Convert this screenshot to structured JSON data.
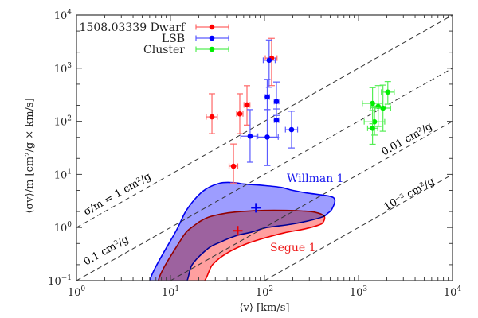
{
  "chart_data": {
    "type": "scatter",
    "title": "",
    "xlabel": "⟨v⟩ [km/s]",
    "ylabel": "⟨σv⟩/m [cm²/g × km/s]",
    "xscale": "log",
    "yscale": "log",
    "xlim": [
      1,
      10000
    ],
    "ylim": [
      0.1,
      10000
    ],
    "grid": false,
    "legend_position": "top-left",
    "x_ticks": [
      {
        "value": 1,
        "base": "10",
        "exp": "0"
      },
      {
        "value": 10,
        "base": "10",
        "exp": "1"
      },
      {
        "value": 100,
        "base": "10",
        "exp": "2"
      },
      {
        "value": 1000,
        "base": "10",
        "exp": "3"
      },
      {
        "value": 10000,
        "base": "10",
        "exp": "4"
      }
    ],
    "y_ticks": [
      {
        "value": 0.1,
        "base": "10",
        "exp": "−1"
      },
      {
        "value": 1,
        "base": "10",
        "exp": "0"
      },
      {
        "value": 10,
        "base": "10",
        "exp": "1"
      },
      {
        "value": 100,
        "base": "10",
        "exp": "2"
      },
      {
        "value": 1000,
        "base": "10",
        "exp": "3"
      },
      {
        "value": 10000,
        "base": "10",
        "exp": "4"
      }
    ],
    "series": [
      {
        "name": "1508.03339 Dwarf",
        "label_prefix": "1508.03339",
        "color": "#ff0000",
        "bar_color": "#ff6666",
        "points": [
          {
            "x": 27.6,
            "y": 121,
            "xerr": [
              24,
              31.5
            ],
            "yerr": [
              58.6,
              330
            ]
          },
          {
            "x": 54.6,
            "y": 138,
            "xerr": [
              50.5,
              59
            ],
            "yerr": [
              58.6,
              330
            ]
          },
          {
            "x": 65.1,
            "y": 204,
            "xerr": [
              60.5,
              70
            ],
            "yerr": [
              85,
              468
            ]
          },
          {
            "x": 46.8,
            "y": 14.3,
            "xerr": [
              42,
              52
            ],
            "yerr": [
              6.9,
              37.4
            ]
          },
          {
            "x": 119,
            "y": 1550,
            "xerr": [
              102,
              136
            ],
            "yerr": [
              470,
              3650
            ]
          }
        ]
      },
      {
        "name": "LSB",
        "color": "#0000ff",
        "bar_color": "#5a5aff",
        "points": [
          {
            "x": 112,
            "y": 1410,
            "xerr": [
              97,
              130
            ],
            "yerr": [
              437,
              3400
            ]
          },
          {
            "x": 107,
            "y": 288,
            "xerr": [
              102,
              113
            ],
            "yerr": [
              166,
              617
            ]
          },
          {
            "x": 134,
            "y": 236,
            "xerr": [
              127,
              142
            ],
            "yerr": [
              129,
              550
            ]
          },
          {
            "x": 134,
            "y": 105,
            "xerr": [
              127,
              142
            ],
            "yerr": [
              49,
              171
            ]
          },
          {
            "x": 70.3,
            "y": 52.6,
            "xerr": [
              56,
              85
            ],
            "yerr": [
              17,
              166
            ]
          },
          {
            "x": 107,
            "y": 50.6,
            "xerr": [
              83,
              140
            ],
            "yerr": [
              14.7,
              166
            ]
          },
          {
            "x": 194,
            "y": 69.7,
            "xerr": [
              167,
              225
            ],
            "yerr": [
              31.5,
              155
            ]
          }
        ]
      },
      {
        "name": "Cluster",
        "color": "#00ee00",
        "bar_color": "#55ee55",
        "points": [
          {
            "x": 2050,
            "y": 355,
            "xerr": [
              1750,
              2400
            ],
            "yerr": [
              210,
              560
            ]
          },
          {
            "x": 1410,
            "y": 218,
            "xerr": [
              1100,
              1800
            ],
            "yerr": [
              90,
              430
            ]
          },
          {
            "x": 1620,
            "y": 190,
            "xerr": [
              1350,
              1950
            ],
            "yerr": [
              80,
              470
            ]
          },
          {
            "x": 1820,
            "y": 177,
            "xerr": [
              1500,
              2200
            ],
            "yerr": [
              65,
              480
            ]
          },
          {
            "x": 1480,
            "y": 98,
            "xerr": [
              1150,
              1900
            ],
            "yerr": [
              55,
              180
            ]
          },
          {
            "x": 1410,
            "y": 74,
            "xerr": [
              1250,
              1600
            ],
            "yerr": [
              37,
              160
            ]
          }
        ]
      }
    ],
    "reference_lines": [
      {
        "name": "sigma-m-1",
        "k": 1,
        "label": "σ/m = 1 cm²/g"
      },
      {
        "name": "sigma-m-0.1",
        "k": 0.1,
        "label": "0.1 cm²/g"
      },
      {
        "name": "sigma-m-0.01",
        "k": 0.01,
        "label": "0.01 cm²/g"
      },
      {
        "name": "sigma-m-0.001",
        "k": 0.001,
        "label": "10⁻³ cm²/g"
      }
    ],
    "regions": [
      {
        "name": "Willman 1",
        "color": "#0000ee",
        "fill": "#8c8cff",
        "best_fit": {
          "x": 81,
          "y": 2.35
        },
        "outline": [
          [
            5.9,
            0.1
          ],
          [
            11.8,
            0.95
          ],
          [
            15,
            2.2
          ],
          [
            22,
            4.8
          ],
          [
            33,
            6.8
          ],
          [
            48,
            7.0
          ],
          [
            60,
            6.6
          ],
          [
            98,
            6.2
          ],
          [
            150,
            5.7
          ],
          [
            200,
            5.0
          ],
          [
            300,
            4.4
          ],
          [
            490,
            3.9
          ],
          [
            560,
            3.3
          ],
          [
            520,
            2.2
          ],
          [
            470,
            1.85
          ],
          [
            420,
            1.6
          ],
          [
            300,
            1.35
          ],
          [
            190,
            1.15
          ],
          [
            130,
            1.05
          ],
          [
            100,
            0.98
          ],
          [
            73,
            0.82
          ],
          [
            50,
            0.7
          ],
          [
            33,
            0.52
          ],
          [
            25,
            0.4
          ],
          [
            17,
            0.2
          ],
          [
            13.5,
            0.1
          ]
        ]
      },
      {
        "name": "Segue 1",
        "color": "#ee0000",
        "fill": "#ff7a7a",
        "best_fit": {
          "x": 52,
          "y": 0.87
        },
        "outline": [
          [
            7.4,
            0.1
          ],
          [
            13,
            0.6
          ],
          [
            18,
            1.1
          ],
          [
            25,
            1.55
          ],
          [
            38,
            1.85
          ],
          [
            57,
            2.0
          ],
          [
            100,
            2.1
          ],
          [
            170,
            2.1
          ],
          [
            250,
            2.05
          ],
          [
            340,
            1.95
          ],
          [
            430,
            1.65
          ],
          [
            420,
            1.25
          ],
          [
            370,
            1.1
          ],
          [
            260,
            0.93
          ],
          [
            160,
            0.79
          ],
          [
            90,
            0.6
          ],
          [
            60,
            0.47
          ],
          [
            40,
            0.33
          ],
          [
            28,
            0.2
          ],
          [
            20,
            0.1
          ]
        ]
      }
    ]
  }
}
